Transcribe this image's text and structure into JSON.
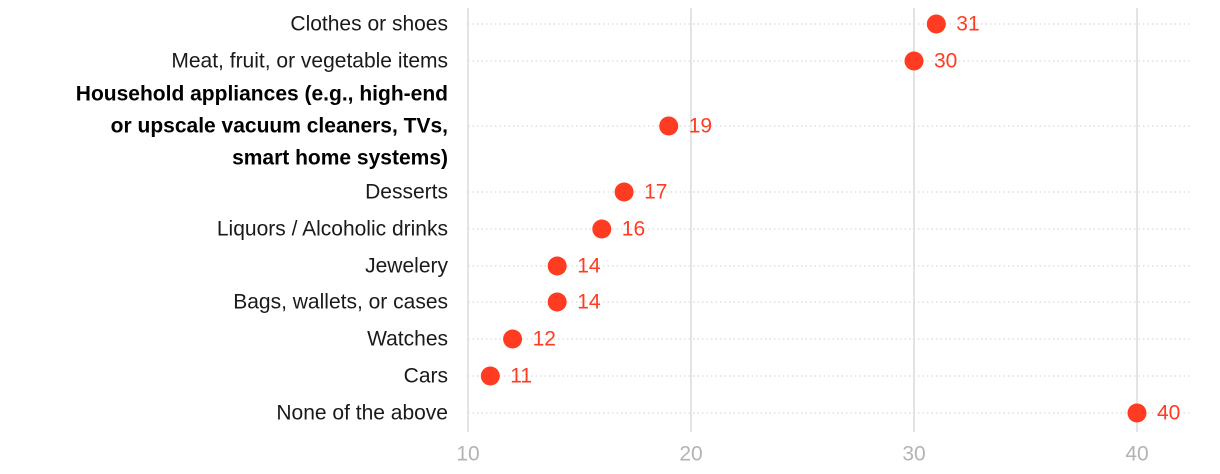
{
  "chart_data": {
    "type": "scatter",
    "orientation": "horizontal-dot-plot",
    "title": "",
    "xlabel": "",
    "ylabel": "",
    "xlim": [
      10,
      42
    ],
    "x_ticks": [
      10,
      20,
      30,
      40
    ],
    "grid": true,
    "categories": [
      {
        "label_lines": [
          "Clothes or shoes"
        ],
        "value": 31,
        "highlight": false
      },
      {
        "label_lines": [
          "Meat, fruit, or vegetable items"
        ],
        "value": 30,
        "highlight": false
      },
      {
        "label_lines": [
          "Household appliances (e.g., high-end",
          "or upscale vacuum cleaners, TVs,",
          "smart home systems)"
        ],
        "value": 19,
        "highlight": true
      },
      {
        "label_lines": [
          "Desserts"
        ],
        "value": 17,
        "highlight": false
      },
      {
        "label_lines": [
          "Liquors / Alcoholic drinks"
        ],
        "value": 16,
        "highlight": false
      },
      {
        "label_lines": [
          "Jewelery"
        ],
        "value": 14,
        "highlight": false
      },
      {
        "label_lines": [
          "Bags, wallets, or cases"
        ],
        "value": 14,
        "highlight": false
      },
      {
        "label_lines": [
          "Watches"
        ],
        "value": 12,
        "highlight": false
      },
      {
        "label_lines": [
          "Cars"
        ],
        "value": 11,
        "highlight": false
      },
      {
        "label_lines": [
          "None of the above"
        ],
        "value": 40,
        "highlight": false
      }
    ],
    "colors": {
      "dot": "#ff3b21",
      "value_label": "#ff3b21",
      "gridline_major": "#dcdcdc",
      "gridline_row": "#cfcfcf",
      "tick_label": "#b3b3b3"
    }
  }
}
